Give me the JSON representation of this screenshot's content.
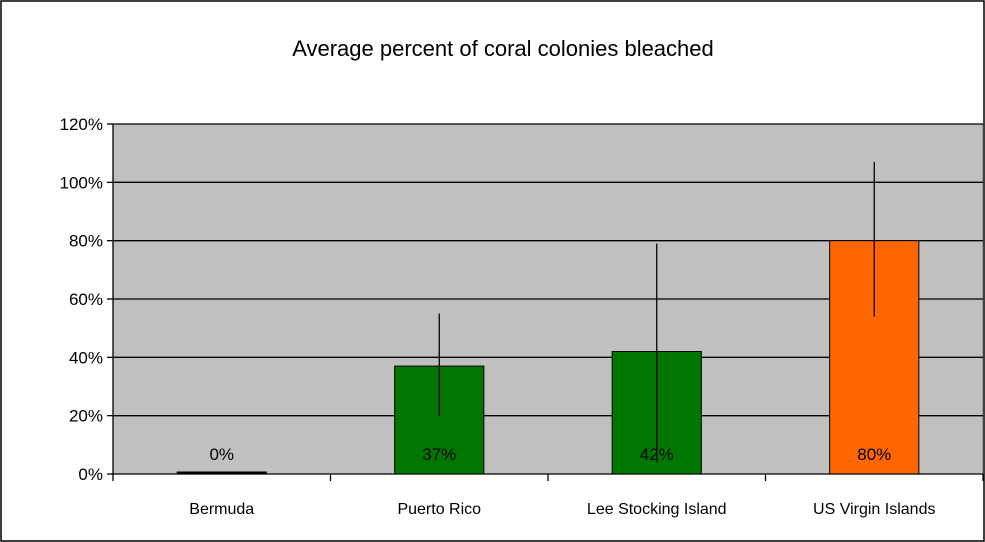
{
  "chart_data": {
    "type": "bar",
    "title": "Average percent of coral colonies bleached",
    "categories": [
      "Bermuda",
      "Puerto Rico",
      "Lee Stocking Island",
      "US Virgin Islands"
    ],
    "values": [
      0,
      37,
      42,
      80
    ],
    "data_labels": [
      "0%",
      "37%",
      "42%",
      "80%"
    ],
    "error_low": [
      0,
      20,
      4,
      54
    ],
    "error_high": [
      0,
      55,
      79,
      107
    ],
    "bar_colors": [
      "#000000",
      "#007700",
      "#007700",
      "#ff6600"
    ],
    "ylim": [
      0,
      120
    ],
    "yticks": [
      0,
      20,
      40,
      60,
      80,
      100,
      120
    ],
    "ytick_labels": [
      "0%",
      "20%",
      "40%",
      "60%",
      "80%",
      "100%",
      "120%"
    ],
    "xlabel": "",
    "ylabel": "",
    "grid": true,
    "plot_background": "#c0c0c0"
  }
}
